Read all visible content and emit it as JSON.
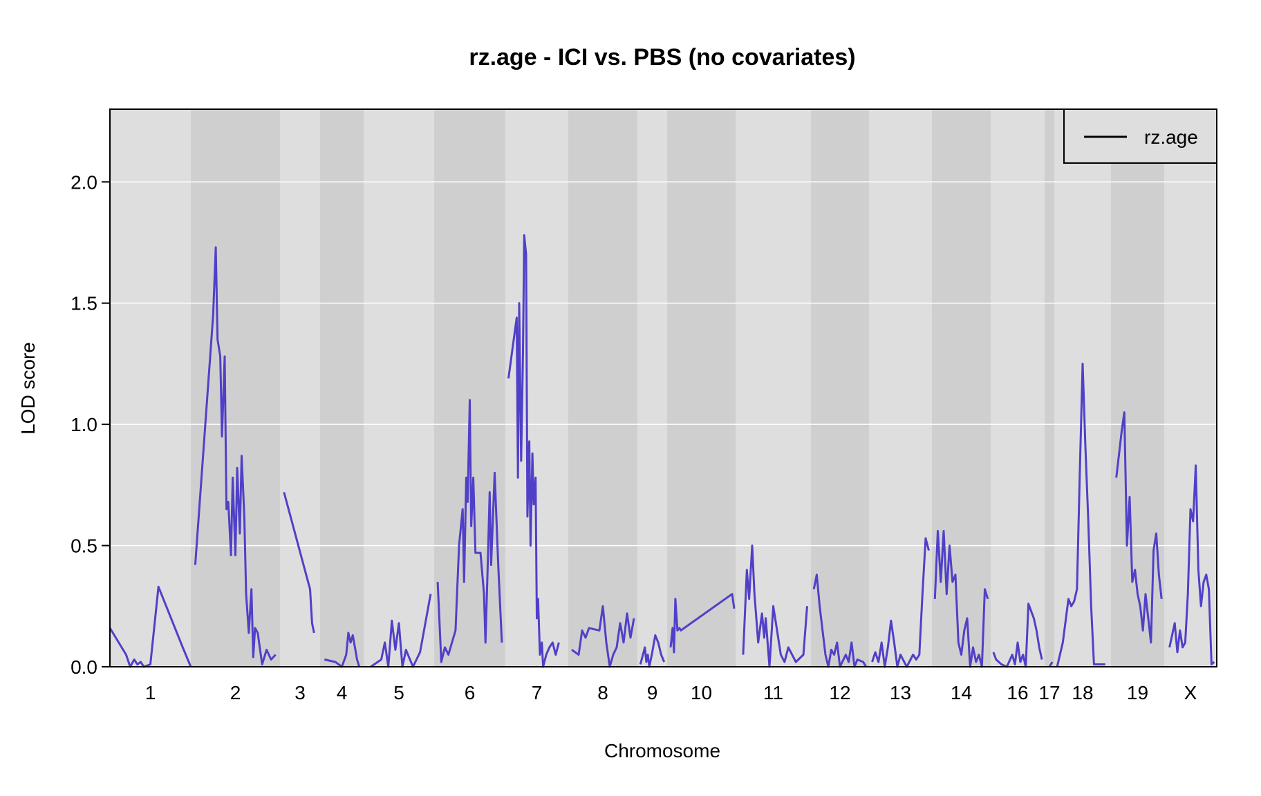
{
  "chart_data": {
    "type": "line",
    "title": "rz.age - ICI vs. PBS (no covariates)",
    "xlabel": "Chromosome",
    "ylabel": "LOD score",
    "ylim": [
      0,
      2.3
    ],
    "y_ticks": [
      "0.0",
      "0.5",
      "1.0",
      "1.5",
      "2.0"
    ],
    "grid": "horizontal",
    "legend_placement": "top-right",
    "colors": {
      "line": "#5040c8",
      "panel_light": "#dedede",
      "panel_dark": "#cfcfcf",
      "gridline": "#ffffff",
      "legend_line": "#000000"
    },
    "chromosomes": [
      {
        "label": "1"
      },
      {
        "label": "2"
      },
      {
        "label": "3"
      },
      {
        "label": "4"
      },
      {
        "label": "5"
      },
      {
        "label": "6"
      },
      {
        "label": "7"
      },
      {
        "label": "8"
      },
      {
        "label": "9"
      },
      {
        "label": "10"
      },
      {
        "label": "11"
      },
      {
        "label": "12"
      },
      {
        "label": "13"
      },
      {
        "label": "14"
      },
      {
        "label": "16"
      },
      {
        "label": "17"
      },
      {
        "label": "18"
      },
      {
        "label": "19"
      },
      {
        "label": "X"
      }
    ],
    "series": [
      {
        "name": "rz.age",
        "segments": [
          {
            "chr": "1",
            "x": [
              0.0,
              0.2,
              0.25,
              0.3,
              0.34,
              0.38,
              0.42,
              0.5,
              0.6,
              0.9,
              1.0
            ],
            "y": [
              0.16,
              0.05,
              0.0,
              0.03,
              0.01,
              0.02,
              0.0,
              0.01,
              0.33,
              0.08,
              0.0
            ]
          },
          {
            "chr": "2",
            "x": [
              0.05,
              0.25,
              0.28,
              0.3,
              0.33,
              0.35,
              0.38,
              0.4,
              0.42,
              0.45,
              0.47,
              0.5,
              0.52,
              0.55,
              0.57,
              0.6,
              0.62,
              0.65,
              0.68,
              0.7,
              0.72,
              0.75,
              0.8,
              0.85,
              0.9,
              0.95
            ],
            "y": [
              0.42,
              1.45,
              1.73,
              1.35,
              1.28,
              0.95,
              1.28,
              0.65,
              0.68,
              0.46,
              0.78,
              0.46,
              0.82,
              0.55,
              0.87,
              0.62,
              0.3,
              0.14,
              0.32,
              0.04,
              0.16,
              0.14,
              0.01,
              0.07,
              0.03,
              0.05
            ]
          },
          {
            "chr": "3",
            "x": [
              0.1,
              0.75,
              0.8,
              0.85
            ],
            "y": [
              0.72,
              0.32,
              0.18,
              0.14
            ]
          },
          {
            "chr": "4",
            "x": [
              0.1,
              0.35,
              0.5,
              0.6,
              0.65,
              0.7,
              0.75,
              0.8,
              0.85,
              0.9
            ],
            "y": [
              0.03,
              0.02,
              0.0,
              0.05,
              0.14,
              0.1,
              0.13,
              0.08,
              0.03,
              0.0
            ]
          },
          {
            "chr": "5",
            "x": [
              0.1,
              0.25,
              0.3,
              0.35,
              0.4,
              0.45,
              0.5,
              0.55,
              0.6,
              0.7,
              0.8,
              0.95
            ],
            "y": [
              0.0,
              0.03,
              0.1,
              0.0,
              0.19,
              0.07,
              0.18,
              0.0,
              0.07,
              0.0,
              0.06,
              0.3
            ]
          },
          {
            "chr": "6",
            "x": [
              0.05,
              0.1,
              0.15,
              0.2,
              0.3,
              0.35,
              0.4,
              0.42,
              0.45,
              0.47,
              0.5,
              0.52,
              0.55,
              0.58,
              0.6,
              0.65,
              0.7,
              0.72,
              0.75,
              0.78,
              0.8,
              0.85,
              0.9,
              0.95
            ],
            "y": [
              0.35,
              0.02,
              0.08,
              0.05,
              0.15,
              0.5,
              0.65,
              0.35,
              0.78,
              0.68,
              1.1,
              0.58,
              0.78,
              0.47,
              0.47,
              0.47,
              0.3,
              0.1,
              0.4,
              0.72,
              0.42,
              0.8,
              0.42,
              0.1
            ]
          },
          {
            "chr": "7",
            "x": [
              0.05,
              0.18,
              0.2,
              0.22,
              0.25,
              0.28,
              0.3,
              0.33,
              0.35,
              0.38,
              0.4,
              0.43,
              0.45,
              0.48,
              0.5,
              0.52,
              0.55,
              0.58,
              0.6,
              0.65,
              0.7,
              0.75,
              0.8,
              0.85
            ],
            "y": [
              1.19,
              1.44,
              0.78,
              1.5,
              0.85,
              1.3,
              1.78,
              1.7,
              0.62,
              0.93,
              0.5,
              0.88,
              0.67,
              0.78,
              0.2,
              0.28,
              0.05,
              0.1,
              0.0,
              0.05,
              0.08,
              0.1,
              0.05,
              0.1
            ]
          },
          {
            "chr": "8",
            "x": [
              0.05,
              0.15,
              0.2,
              0.25,
              0.3,
              0.45,
              0.5,
              0.55,
              0.6,
              0.65,
              0.7,
              0.75,
              0.8,
              0.85,
              0.9,
              0.95
            ],
            "y": [
              0.07,
              0.05,
              0.15,
              0.12,
              0.16,
              0.15,
              0.25,
              0.1,
              0.0,
              0.05,
              0.08,
              0.18,
              0.1,
              0.22,
              0.12,
              0.2
            ]
          },
          {
            "chr": "9",
            "x": [
              0.1,
              0.25,
              0.3,
              0.35,
              0.4,
              0.5,
              0.6,
              0.7,
              0.8,
              0.9
            ],
            "y": [
              0.01,
              0.08,
              0.02,
              0.05,
              0.0,
              0.06,
              0.13,
              0.1,
              0.05,
              0.02
            ]
          },
          {
            "chr": "10",
            "x": [
              0.05,
              0.08,
              0.1,
              0.12,
              0.15,
              0.18,
              0.2,
              0.95,
              0.98
            ],
            "y": [
              0.08,
              0.16,
              0.06,
              0.28,
              0.15,
              0.16,
              0.15,
              0.3,
              0.24
            ]
          },
          {
            "chr": "11",
            "x": [
              0.1,
              0.15,
              0.18,
              0.22,
              0.25,
              0.3,
              0.35,
              0.38,
              0.4,
              0.45,
              0.5,
              0.55,
              0.6,
              0.65,
              0.7,
              0.8,
              0.9,
              0.95
            ],
            "y": [
              0.05,
              0.4,
              0.28,
              0.5,
              0.3,
              0.1,
              0.22,
              0.12,
              0.2,
              0.0,
              0.25,
              0.15,
              0.05,
              0.02,
              0.08,
              0.02,
              0.05,
              0.25
            ]
          },
          {
            "chr": "12",
            "x": [
              0.05,
              0.1,
              0.15,
              0.25,
              0.3,
              0.35,
              0.4,
              0.45,
              0.5,
              0.6,
              0.65,
              0.7,
              0.75,
              0.8,
              0.9,
              0.95
            ],
            "y": [
              0.32,
              0.38,
              0.25,
              0.05,
              0.0,
              0.07,
              0.05,
              0.1,
              0.0,
              0.05,
              0.02,
              0.1,
              0.0,
              0.03,
              0.02,
              0.0
            ]
          },
          {
            "chr": "13",
            "x": [
              0.05,
              0.1,
              0.15,
              0.2,
              0.25,
              0.3,
              0.35,
              0.4,
              0.45,
              0.5,
              0.6,
              0.7,
              0.75,
              0.8,
              0.85,
              0.9,
              0.95
            ],
            "y": [
              0.02,
              0.06,
              0.02,
              0.1,
              0.0,
              0.08,
              0.19,
              0.1,
              0.0,
              0.05,
              0.0,
              0.05,
              0.03,
              0.05,
              0.3,
              0.53,
              0.48
            ]
          },
          {
            "chr": "14",
            "x": [
              0.05,
              0.1,
              0.15,
              0.2,
              0.25,
              0.3,
              0.35,
              0.4,
              0.45,
              0.5,
              0.55,
              0.6,
              0.65,
              0.7,
              0.75,
              0.8,
              0.85,
              0.9,
              0.95
            ],
            "y": [
              0.28,
              0.56,
              0.35,
              0.56,
              0.3,
              0.5,
              0.35,
              0.38,
              0.1,
              0.05,
              0.15,
              0.2,
              0.0,
              0.08,
              0.02,
              0.05,
              0.0,
              0.32,
              0.28
            ]
          },
          {
            "chr": "16",
            "x": [
              0.05,
              0.1,
              0.2,
              0.3,
              0.4,
              0.45,
              0.5,
              0.55,
              0.6,
              0.65,
              0.7,
              0.8,
              0.85,
              0.9,
              0.95
            ],
            "y": [
              0.06,
              0.03,
              0.01,
              0.0,
              0.05,
              0.01,
              0.1,
              0.02,
              0.05,
              0.0,
              0.26,
              0.2,
              0.15,
              0.08,
              0.03
            ]
          },
          {
            "chr": "17",
            "x": [
              0.5,
              0.8
            ],
            "y": [
              0.0,
              0.02
            ]
          },
          {
            "chr": "18",
            "x": [
              0.05,
              0.15,
              0.25,
              0.3,
              0.35,
              0.4,
              0.45,
              0.5,
              0.55,
              0.6,
              0.65,
              0.7,
              0.75,
              0.8,
              0.9
            ],
            "y": [
              0.0,
              0.1,
              0.28,
              0.25,
              0.27,
              0.32,
              0.8,
              1.25,
              0.9,
              0.6,
              0.25,
              0.01,
              0.01,
              0.01,
              0.01
            ]
          },
          {
            "chr": "19",
            "x": [
              0.1,
              0.2,
              0.25,
              0.3,
              0.35,
              0.4,
              0.45,
              0.5,
              0.55,
              0.6,
              0.65,
              0.7,
              0.75,
              0.8,
              0.85,
              0.9,
              0.95
            ],
            "y": [
              0.78,
              0.97,
              1.05,
              0.5,
              0.7,
              0.35,
              0.4,
              0.3,
              0.25,
              0.15,
              0.3,
              0.2,
              0.1,
              0.48,
              0.55,
              0.38,
              0.28
            ]
          },
          {
            "chr": "X",
            "x": [
              0.1,
              0.2,
              0.25,
              0.3,
              0.35,
              0.4,
              0.45,
              0.5,
              0.55,
              0.6,
              0.65,
              0.7,
              0.75,
              0.8,
              0.85,
              0.9,
              0.95
            ],
            "y": [
              0.08,
              0.18,
              0.06,
              0.15,
              0.08,
              0.1,
              0.3,
              0.65,
              0.6,
              0.83,
              0.4,
              0.25,
              0.35,
              0.38,
              0.32,
              0.01,
              0.02
            ]
          }
        ]
      }
    ]
  }
}
